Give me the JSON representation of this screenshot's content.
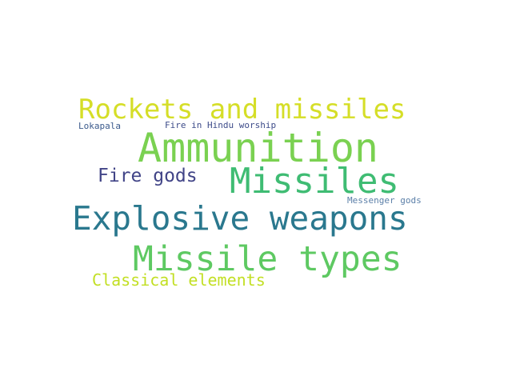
{
  "word_cloud": {
    "words": [
      {
        "key": "rockets_and_missiles",
        "text": "Rockets and missiles",
        "color": "#d5de27"
      },
      {
        "key": "ammunition",
        "text": "Ammunition",
        "color": "#7ad151"
      },
      {
        "key": "lokapala",
        "text": "Lokapala",
        "color": "#3b5a8c"
      },
      {
        "key": "fire_in_hindu_worship",
        "text": "Fire in Hindu worship",
        "color": "#3e4c8a"
      },
      {
        "key": "fire_gods",
        "text": "Fire gods",
        "color": "#414487"
      },
      {
        "key": "missiles",
        "text": "Missiles",
        "color": "#3fbc73"
      },
      {
        "key": "messenger_gods",
        "text": "Messenger gods",
        "color": "#5b7fa8"
      },
      {
        "key": "explosive_weapons",
        "text": "Explosive weapons",
        "color": "#2a788e"
      },
      {
        "key": "missile_types",
        "text": "Missile types",
        "color": "#5ec962"
      },
      {
        "key": "classical_elements",
        "text": "Classical elements",
        "color": "#c2df23"
      }
    ]
  }
}
